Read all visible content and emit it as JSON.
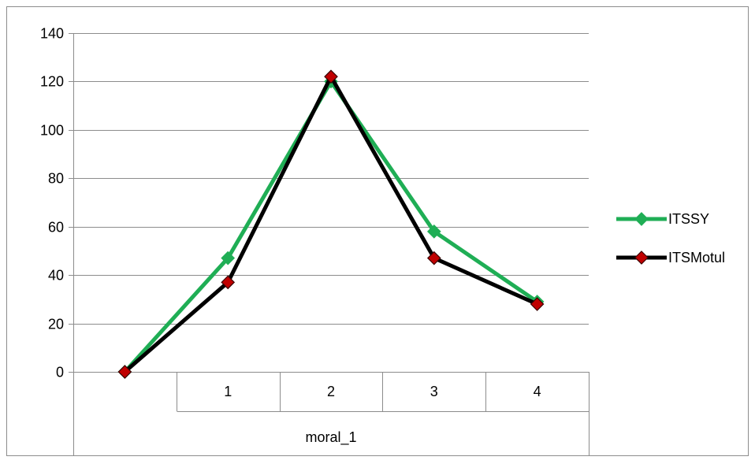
{
  "chart_data": {
    "type": "line",
    "title": "",
    "xlabel": "",
    "ylabel": "",
    "categories": [
      "",
      "1",
      "2",
      "3",
      "4"
    ],
    "group_label": "moral_1",
    "ylim": [
      0,
      140
    ],
    "yticks": [
      0,
      20,
      40,
      60,
      80,
      100,
      120,
      140
    ],
    "grid": "horizontal",
    "legend_position": "right",
    "series": [
      {
        "name": "ITSSY",
        "values": [
          0,
          47,
          120,
          58,
          29
        ],
        "color": "#1fae55",
        "marker": "diamond",
        "marker_color": "#1fae55"
      },
      {
        "name": "ITSMotul",
        "values": [
          0,
          37,
          122,
          47,
          28
        ],
        "color": "#000000",
        "marker": "diamond",
        "marker_color": "#c00000"
      }
    ]
  }
}
